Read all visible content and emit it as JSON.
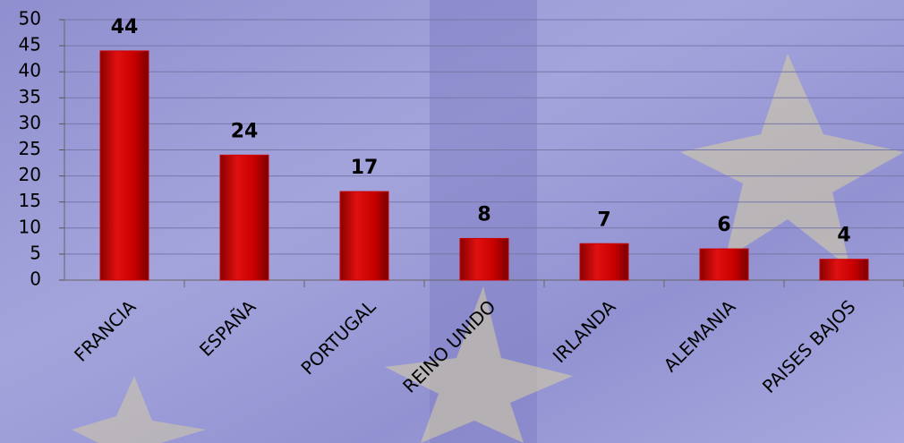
{
  "chart_data": {
    "type": "bar",
    "categories": [
      "FRANCIA",
      "ESPAÑA",
      "PORTUGAL",
      "REINO UNIDO",
      "IRLANDA",
      "ALEMANIA",
      "PAISES BAJOS"
    ],
    "values": [
      44,
      24,
      17,
      8,
      7,
      6,
      4
    ],
    "color": "#cc0000",
    "ylim": [
      0,
      50
    ],
    "yticks": [
      0,
      5,
      10,
      15,
      20,
      25,
      30,
      35,
      40,
      45,
      50
    ],
    "grid": true
  }
}
